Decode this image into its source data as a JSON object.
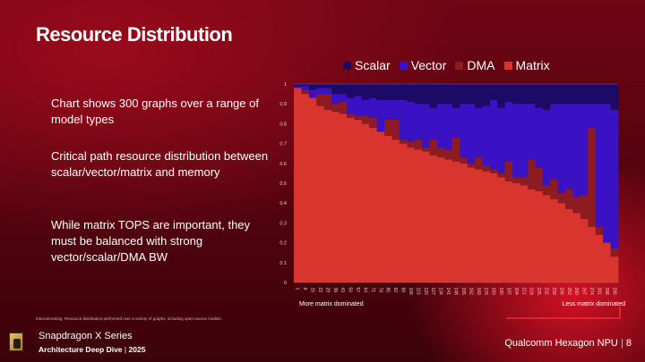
{
  "slide": {
    "title": "Resource Distribution",
    "bullets": [
      "Chart shows 300 graphs over a range of model types",
      "Critical path resource distribution between scalar/vector/matrix and memory",
      "While matrix TOPS are important, they must be balanced with strong vector/scalar/DMA BW"
    ],
    "footnote": "Internal testing. Resource distribution performed over a variety of graphs, including open-source models.",
    "brand_line1": "Snapdragon X Series",
    "brand_line2": "Architecture Deep Dive",
    "brand_year": "2025",
    "section": "Qualcomm Hexagon NPU",
    "page": "8",
    "separator": "|"
  },
  "chart_data": {
    "type": "bar",
    "stacked": true,
    "title": "",
    "xlabel": "",
    "ylabel": "",
    "ylim": [
      0,
      1
    ],
    "yticks": [
      0,
      0.1,
      0.2,
      0.3,
      0.4,
      0.5,
      0.6,
      0.7,
      0.8,
      0.9,
      1
    ],
    "legend_position": "top",
    "x_caption_left": "More matrix dominated",
    "x_caption_right": "Less matrix dominated",
    "categories": [
      1,
      8,
      15,
      22,
      29,
      36,
      43,
      50,
      57,
      64,
      71,
      78,
      85,
      92,
      99,
      106,
      113,
      120,
      127,
      134,
      141,
      148,
      155,
      162,
      169,
      176,
      183,
      190,
      197,
      204,
      211,
      218,
      225,
      232,
      239,
      246,
      253,
      260,
      267,
      274,
      281,
      288,
      295
    ],
    "series": [
      {
        "name": "Matrix",
        "color": "#d9352f",
        "values": [
          0.98,
          0.95,
          0.93,
          0.89,
          0.87,
          0.86,
          0.85,
          0.83,
          0.82,
          0.8,
          0.78,
          0.76,
          0.74,
          0.72,
          0.7,
          0.68,
          0.67,
          0.66,
          0.64,
          0.63,
          0.62,
          0.61,
          0.6,
          0.58,
          0.57,
          0.56,
          0.55,
          0.53,
          0.51,
          0.5,
          0.49,
          0.47,
          0.46,
          0.44,
          0.42,
          0.4,
          0.37,
          0.35,
          0.32,
          0.28,
          0.24,
          0.2,
          0.13
        ]
      },
      {
        "name": "DMA",
        "color": "#8c1c22",
        "values": [
          0,
          0.02,
          0,
          0.06,
          0.08,
          0.04,
          0.06,
          0.02,
          0.02,
          0.04,
          0.05,
          0,
          0.08,
          0.1,
          0.02,
          0.03,
          0.05,
          0.02,
          0.08,
          0.05,
          0.05,
          0.12,
          0.03,
          0.02,
          0.06,
          0.03,
          0.02,
          0.02,
          0.1,
          0.03,
          0.04,
          0.15,
          0.12,
          0.05,
          0.1,
          0.05,
          0.1,
          0.08,
          0.12,
          0.5,
          0.04,
          0,
          0.04
        ]
      },
      {
        "name": "Vector",
        "color": "#3a12c4",
        "values": [
          0.01,
          0.02,
          0.04,
          0.03,
          0.03,
          0.05,
          0.04,
          0.08,
          0.1,
          0.08,
          0.1,
          0.16,
          0.1,
          0.1,
          0.2,
          0.2,
          0.18,
          0.22,
          0.16,
          0.22,
          0.23,
          0.15,
          0.27,
          0.3,
          0.25,
          0.3,
          0.35,
          0.33,
          0.3,
          0.37,
          0.37,
          0.28,
          0.3,
          0.38,
          0.38,
          0.45,
          0.43,
          0.47,
          0.46,
          0.12,
          0.62,
          0.7,
          0.7
        ]
      },
      {
        "name": "Scalar",
        "color": "#1c0a66",
        "values": [
          0.01,
          0.01,
          0.03,
          0.02,
          0.02,
          0.05,
          0.05,
          0.07,
          0.06,
          0.08,
          0.07,
          0.08,
          0.08,
          0.08,
          0.08,
          0.09,
          0.1,
          0.1,
          0.12,
          0.1,
          0.1,
          0.12,
          0.1,
          0.1,
          0.12,
          0.11,
          0.08,
          0.12,
          0.09,
          0.1,
          0.1,
          0.1,
          0.12,
          0.13,
          0.1,
          0.1,
          0.1,
          0.1,
          0.1,
          0.1,
          0.1,
          0.1,
          0.13
        ]
      }
    ]
  }
}
